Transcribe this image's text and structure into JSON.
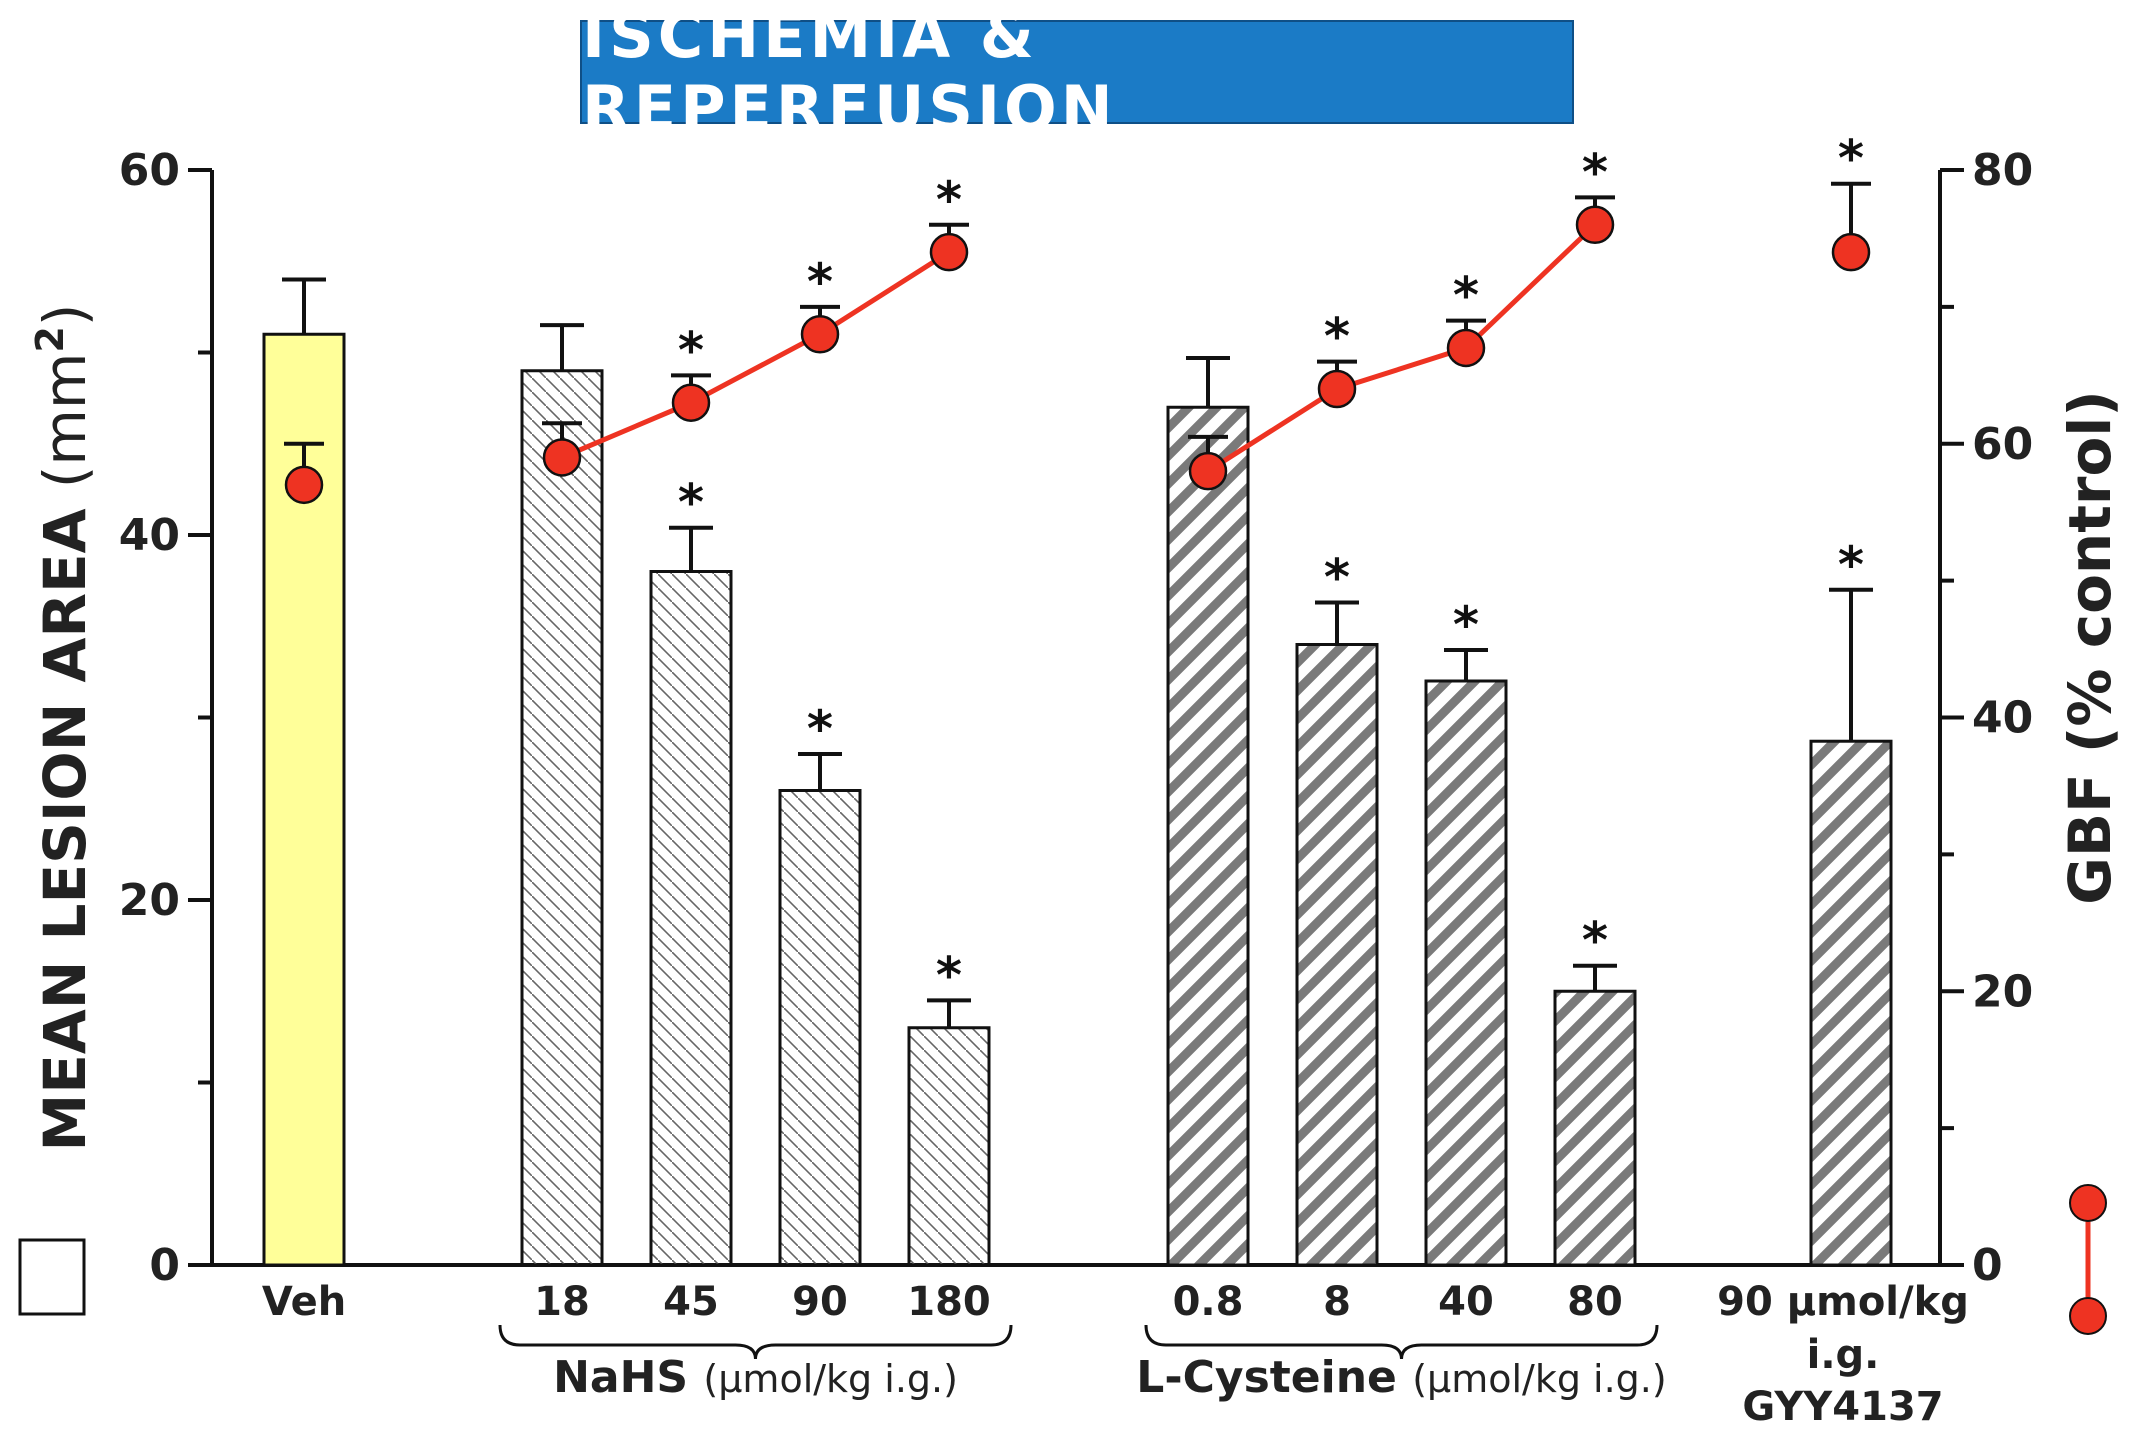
{
  "title": "ISCHEMIA & REPERFUSION",
  "colors": {
    "title_bg": "#1b7bc6",
    "veh_bar": "#ffff99",
    "gbf_line": "#ee3322",
    "axis": "#111111"
  },
  "chart_data": {
    "type": "bar",
    "title": "ISCHEMIA & REPERFUSION",
    "ylabel": "MEAN LESION AREA (mm²)",
    "ylabel_main": "MEAN LESION AREA",
    "ylabel_unit": "(mm",
    "ylabel_sup": "2",
    "ylabel_close": ")",
    "y2label_main": "GBF",
    "y2label_unit": "(% control)",
    "ylim": [
      0,
      60
    ],
    "y2lim": [
      0,
      80
    ],
    "yticks": [
      "0",
      "20",
      "40",
      "60"
    ],
    "y2ticks": [
      "0",
      "20",
      "40",
      "60",
      "80"
    ],
    "grid": false,
    "categories": [
      "Veh",
      "18",
      "45",
      "90",
      "180",
      "0.8",
      "8",
      "40",
      "80",
      "90 µmol/kg"
    ],
    "category_extra": [
      "i.g.",
      "GYY4137"
    ],
    "groups": [
      {
        "name": "NaHS",
        "unit": "(µmol/kg i.g.)",
        "members": [
          1,
          2,
          3,
          4
        ]
      },
      {
        "name": "L-Cysteine",
        "unit": "(µmol/kg i.g.)",
        "members": [
          5,
          6,
          7,
          8
        ]
      }
    ],
    "series": [
      {
        "kind": "bar",
        "axis": "left",
        "values": [
          51,
          49,
          38,
          26,
          13,
          47,
          34,
          32,
          15,
          28.7
        ],
        "errors": [
          3,
          2.5,
          2.4,
          2,
          1.5,
          2.7,
          2.3,
          1.7,
          1.4,
          8.3
        ],
        "significant": [
          false,
          false,
          true,
          true,
          true,
          false,
          true,
          true,
          true,
          true
        ]
      },
      {
        "kind": "line",
        "axis": "right",
        "values": [
          57,
          59,
          63,
          68,
          74,
          58,
          64,
          67,
          76,
          74
        ],
        "errors": [
          3,
          2.5,
          2,
          2,
          2,
          2.5,
          2,
          2,
          2,
          5
        ],
        "significant": [
          false,
          false,
          true,
          true,
          true,
          false,
          true,
          true,
          true,
          true
        ],
        "segments": [
          [
            1,
            2,
            3,
            4
          ],
          [
            5,
            6,
            7,
            8
          ]
        ]
      }
    ],
    "significance_marker": "*",
    "legend": "left-bottom"
  }
}
